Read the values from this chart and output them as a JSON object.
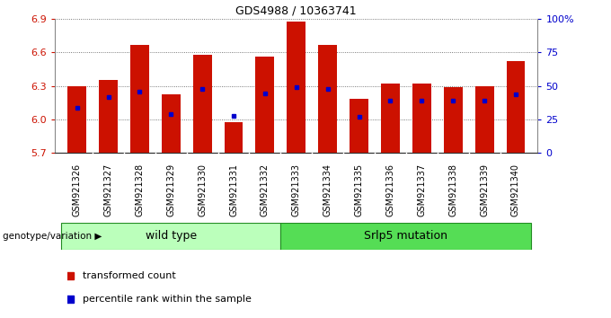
{
  "title": "GDS4988 / 10363741",
  "samples": [
    "GSM921326",
    "GSM921327",
    "GSM921328",
    "GSM921329",
    "GSM921330",
    "GSM921331",
    "GSM921332",
    "GSM921333",
    "GSM921334",
    "GSM921335",
    "GSM921336",
    "GSM921337",
    "GSM921338",
    "GSM921339",
    "GSM921340"
  ],
  "transformed_counts": [
    6.3,
    6.35,
    6.67,
    6.22,
    6.58,
    5.97,
    6.56,
    6.88,
    6.67,
    6.18,
    6.32,
    6.32,
    6.29,
    6.3,
    6.52
  ],
  "percentile_values": [
    6.1,
    6.2,
    6.25,
    6.05,
    6.27,
    6.03,
    6.23,
    6.29,
    6.27,
    6.02,
    6.17,
    6.17,
    6.17,
    6.17,
    6.22
  ],
  "y_min": 5.7,
  "y_max": 6.9,
  "y_ticks": [
    5.7,
    6.0,
    6.3,
    6.6,
    6.9
  ],
  "right_y_ticks": [
    0,
    25,
    50,
    75,
    100
  ],
  "right_y_labels": [
    "0",
    "25",
    "50",
    "75",
    "100%"
  ],
  "bar_color": "#CC1100",
  "percentile_color": "#0000CC",
  "grid_color": "#555555",
  "bar_width": 0.6,
  "wt_count": 7,
  "mut_count": 8,
  "wild_type_label": "wild type",
  "mutation_label": "Srlp5 mutation",
  "group_label": "genotype/variation",
  "legend_bar_label": "transformed count",
  "legend_pct_label": "percentile rank within the sample",
  "wild_type_color": "#BBFFBB",
  "mutation_color": "#55DD55",
  "tick_label_color_left": "#CC1100",
  "tick_label_color_right": "#0000CC",
  "xtick_bg_color": "#CCCCCC",
  "title_fontsize": 9
}
